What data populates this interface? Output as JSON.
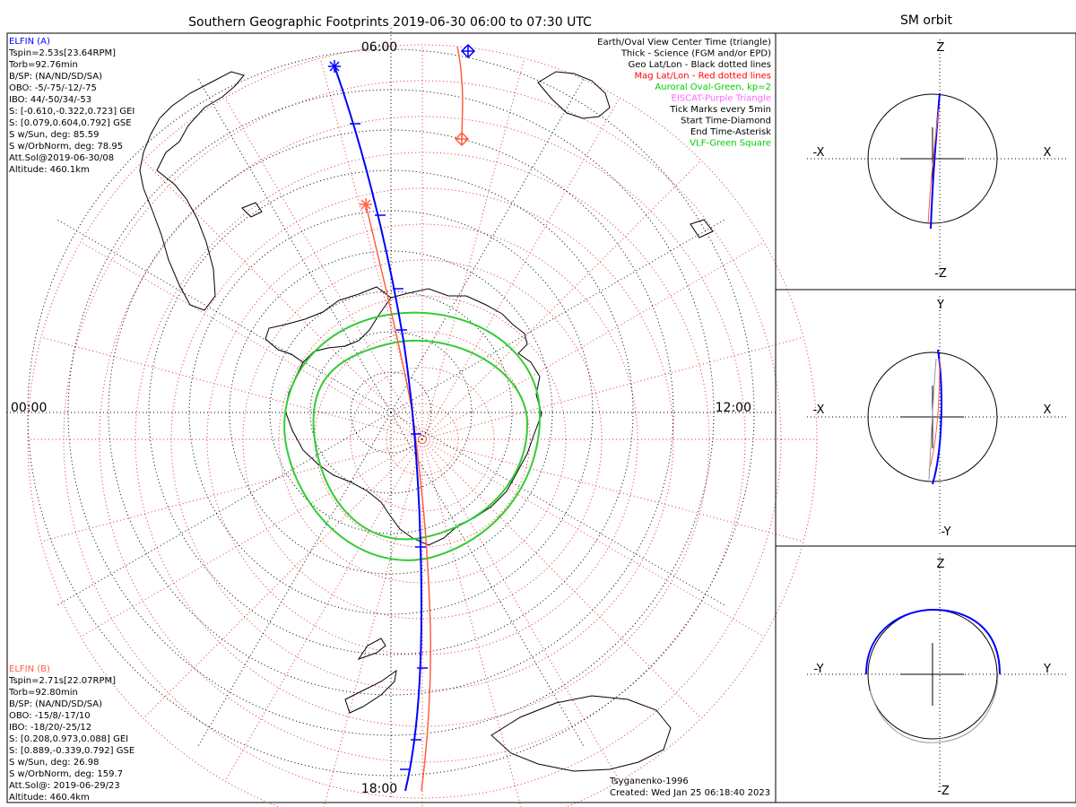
{
  "title": "Southern Geographic Footprints 2019-06-30 06:00 to 07:30 UTC",
  "side_title": "SM orbit",
  "hour_labels": {
    "top": "06:00",
    "left": "00:00",
    "right": "12:00",
    "bottom": "18:00"
  },
  "elfin_a": {
    "name": "ELFIN (A)",
    "lines": [
      "Tspin=2.53s[23.64RPM]",
      "Torb=92.76min",
      "B/SP: (NA/ND/SD/SA)",
      "OBO: -5/-75/-12/-75",
      "IBO: 44/-50/34/-53",
      "S: [-0.610,-0.322,0.723] GEI",
      "S: [0.079,0.604,0.792] GSE",
      "S w/Sun, deg: 85.59",
      "S w/OrbNorm, deg: 78.95",
      "Att.Sol@2019-06-30/08",
      "Altitude: 460.1km"
    ],
    "color": "#0000ff"
  },
  "elfin_b": {
    "name": "ELFIN (B)",
    "lines": [
      "Tspin=2.71s[22.07RPM]",
      "Torb=92.80min",
      "B/SP: (NA/ND/SD/SA)",
      "OBO: -15/8/-17/10",
      "IBO: -18/20/-25/12",
      "S: [0.208,0.973,0.088] GEI",
      "S: [0.889,-0.339,0.792] GSE",
      "S w/Sun, deg: 26.98",
      "S w/OrbNorm, deg: 159.7",
      "Att.Sol@: 2019-06-29/23",
      "Altitude: 460.4km"
    ],
    "color": "#ff6040"
  },
  "legend": [
    {
      "text": "Earth/Oval View Center Time (triangle)",
      "color": "#000000"
    },
    {
      "text": "Thick - Science (FGM and/or EPD)",
      "color": "#000000"
    },
    {
      "text": "Geo Lat/Lon - Black dotted lines",
      "color": "#000000"
    },
    {
      "text": "Mag Lat/Lon - Red dotted lines",
      "color": "#ff0000"
    },
    {
      "text": "Auroral Oval-Green, kp=2",
      "color": "#00cc00"
    },
    {
      "text": "EISCAT-Purple Triangle",
      "color": "#ff66ff"
    },
    {
      "text": "Tick Marks every 5min",
      "color": "#000000"
    },
    {
      "text": "Start Time-Diamond",
      "color": "#000000"
    },
    {
      "text": "End Time-Asterisk",
      "color": "#000000"
    },
    {
      "text": "VLF-Green Square",
      "color": "#00cc00"
    }
  ],
  "credit": {
    "model": "Tsyganenko-1996",
    "created": "Created: Wed Jan 25 06:18:40 2023"
  },
  "panels": [
    {
      "top": "Z",
      "bottom": "-Z",
      "left": "-X",
      "right": "X"
    },
    {
      "top": "Y",
      "bottom": "-Y",
      "left": "-X",
      "right": "X"
    },
    {
      "top": "Z",
      "bottom": "-Z",
      "left": "-Y",
      "right": "Y"
    }
  ]
}
